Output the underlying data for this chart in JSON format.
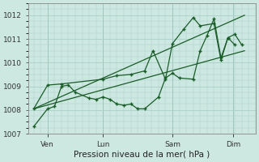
{
  "background_color": "#cce8e0",
  "grid_color": "#aacfc8",
  "line_color": "#1a5c28",
  "xlabel": "Pression niveau de la mer( hPa )",
  "ylim": [
    1007,
    1012.5
  ],
  "yticks": [
    1007,
    1008,
    1009,
    1010,
    1011,
    1012
  ],
  "xlim": [
    -0.2,
    8.0
  ],
  "day_positions": [
    0.5,
    2.5,
    5.0,
    7.2
  ],
  "day_labels": [
    "Ven",
    "Lun",
    "Sam",
    "Dim"
  ],
  "ven_x": 0.5,
  "lun_x": 2.5,
  "sam_x": 5.0,
  "dim_x": 7.2,
  "series_zigzag": {
    "x": [
      0.0,
      0.5,
      0.75,
      1.0,
      1.25,
      1.5,
      2.0,
      2.25,
      2.5,
      2.75,
      3.0,
      3.25,
      3.5,
      3.75,
      4.0,
      4.5,
      4.75,
      5.0,
      5.25,
      5.75,
      6.0,
      6.25,
      6.5,
      6.75,
      7.0,
      7.25
    ],
    "y": [
      1007.3,
      1008.05,
      1008.15,
      1009.0,
      1009.05,
      1008.75,
      1008.5,
      1008.45,
      1008.55,
      1008.45,
      1008.25,
      1008.2,
      1008.25,
      1008.05,
      1008.05,
      1008.55,
      1009.35,
      1009.55,
      1009.35,
      1009.3,
      1010.5,
      1011.15,
      1011.85,
      1010.2,
      1011.05,
      1010.75
    ]
  },
  "series_volatile": {
    "x": [
      0.0,
      0.5,
      1.0,
      2.5,
      3.0,
      3.5,
      4.0,
      4.3,
      4.75,
      5.0,
      5.4,
      5.75,
      6.0,
      6.5,
      6.75,
      7.0,
      7.25,
      7.5
    ],
    "y": [
      1008.05,
      1009.05,
      1009.1,
      1009.3,
      1009.45,
      1009.5,
      1009.65,
      1010.5,
      1009.3,
      1010.8,
      1011.4,
      1011.9,
      1011.55,
      1011.65,
      1010.1,
      1011.05,
      1011.2,
      1010.75
    ]
  },
  "trend1": {
    "x": [
      0.0,
      7.6
    ],
    "y": [
      1008.05,
      1010.5
    ]
  },
  "trend2": {
    "x": [
      0.0,
      7.6
    ],
    "y": [
      1008.05,
      1012.0
    ]
  }
}
